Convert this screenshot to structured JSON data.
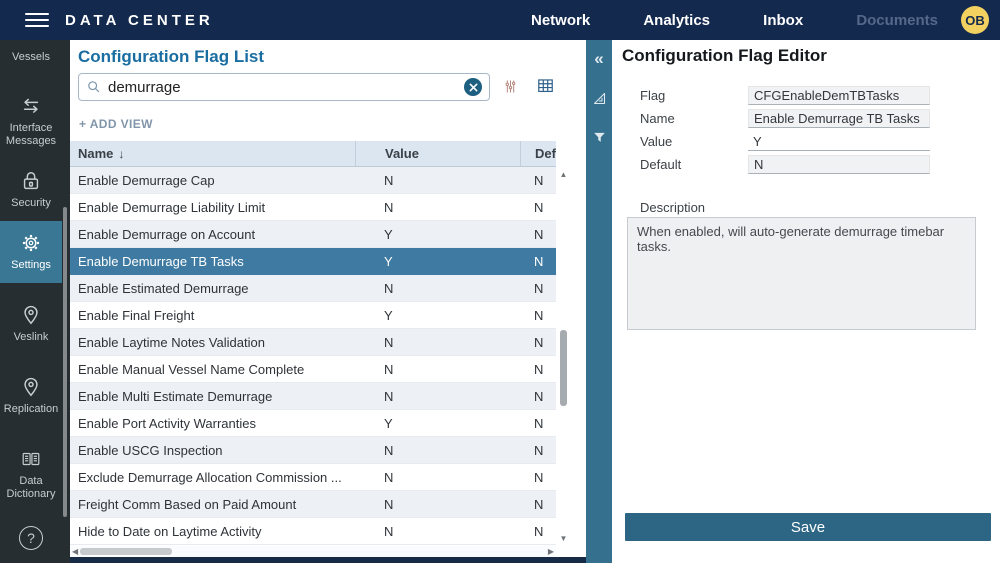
{
  "topbar": {
    "title": "DATA CENTER",
    "nav": [
      {
        "label": "Network",
        "muted": false
      },
      {
        "label": "Analytics",
        "muted": false
      },
      {
        "label": "Inbox",
        "muted": false
      },
      {
        "label": "Documents",
        "muted": true
      }
    ],
    "avatar": "OB"
  },
  "sidebar": {
    "items": [
      {
        "label": "Vessels",
        "icon": "vessel-icon",
        "icon_hidden": true,
        "active": false
      },
      {
        "label": "Interface Messages",
        "icon": "arrows-swap-icon",
        "active": false
      },
      {
        "label": "Security",
        "icon": "lock-icon",
        "active": false
      },
      {
        "label": "Settings",
        "icon": "gear-icon",
        "active": true
      },
      {
        "label": "Veslink",
        "icon": "pin-icon",
        "active": false
      },
      {
        "label": "Replication",
        "icon": "pin-icon",
        "active": false
      },
      {
        "label": "Data Dictionary",
        "icon": "book-icon",
        "active": false
      }
    ]
  },
  "list_panel": {
    "title": "Configuration Flag List",
    "search": {
      "value": "demurrage",
      "placeholder": ""
    },
    "add_view_label": "+ ADD VIEW",
    "table": {
      "columns": [
        "Name",
        "Value",
        "Default"
      ],
      "sort_column": "Name",
      "rows": [
        {
          "name": "Enable Demurrage Cap",
          "value": "N",
          "default": "N",
          "selected": false
        },
        {
          "name": "Enable Demurrage Liability Limit",
          "value": "N",
          "default": "N",
          "selected": false
        },
        {
          "name": "Enable Demurrage on Account",
          "value": "Y",
          "default": "N",
          "selected": false
        },
        {
          "name": "Enable Demurrage TB Tasks",
          "value": "Y",
          "default": "N",
          "selected": true
        },
        {
          "name": "Enable Estimated Demurrage",
          "value": "N",
          "default": "N",
          "selected": false
        },
        {
          "name": "Enable Final Freight",
          "value": "Y",
          "default": "N",
          "selected": false
        },
        {
          "name": "Enable Laytime Notes Validation",
          "value": "N",
          "default": "N",
          "selected": false
        },
        {
          "name": "Enable Manual Vessel Name Complete",
          "value": "N",
          "default": "N",
          "selected": false
        },
        {
          "name": "Enable Multi Estimate Demurrage",
          "value": "N",
          "default": "N",
          "selected": false
        },
        {
          "name": "Enable Port Activity Warranties",
          "value": "Y",
          "default": "N",
          "selected": false
        },
        {
          "name": "Enable USCG Inspection",
          "value": "N",
          "default": "N",
          "selected": false
        },
        {
          "name": "Exclude Demurrage Allocation Commission ...",
          "value": "N",
          "default": "N",
          "selected": false
        },
        {
          "name": "Freight Comm Based on Paid Amount",
          "value": "N",
          "default": "N",
          "selected": false
        },
        {
          "name": "Hide to Date on Laytime Activity",
          "value": "N",
          "default": "N",
          "selected": false
        }
      ]
    }
  },
  "editor_panel": {
    "title": "Configuration Flag Editor",
    "fields": [
      {
        "label": "Flag",
        "value": "CFGEnableDemTBTasks",
        "readonly": true
      },
      {
        "label": "Name",
        "value": "Enable Demurrage TB Tasks",
        "readonly": true
      },
      {
        "label": "Value",
        "value": "Y",
        "readonly": false
      },
      {
        "label": "Default",
        "value": "N",
        "readonly": true
      }
    ],
    "description_label": "Description",
    "description_value": "When enabled, will auto-generate demurrage timebar tasks.",
    "save_label": "Save"
  },
  "glyphs": {
    "collapse": "«",
    "sort_desc": "↓",
    "scroll_up": "▲",
    "scroll_down": "▼",
    "scroll_left": "◀",
    "scroll_right": "▶",
    "help": "?"
  },
  "colors": {
    "topbar": "#13294e",
    "strip": "#35718f",
    "active": "#3a7795",
    "selected": "#3e7aa1",
    "title": "#1a6da1",
    "save": "#2d6684",
    "avatar": "#f2d160"
  }
}
